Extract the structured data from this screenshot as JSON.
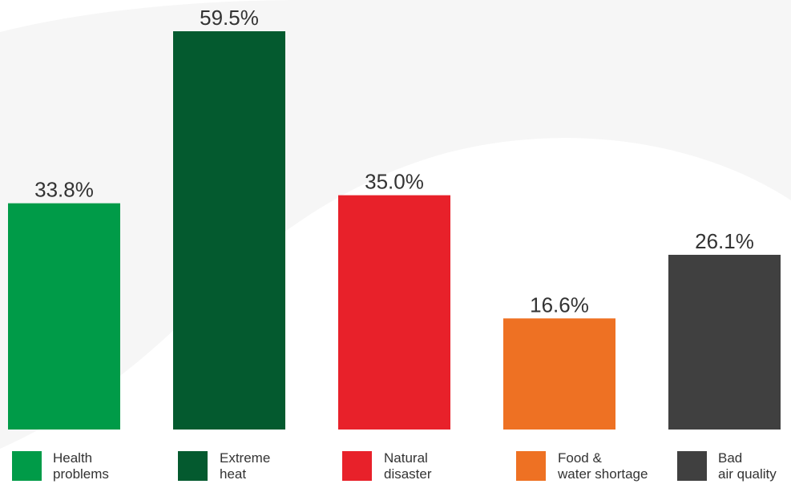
{
  "chart_data": {
    "type": "bar",
    "categories": [
      "Health\nproblems",
      "Extreme\nheat",
      "Natural\ndisaster",
      "Food &\nwater shortage",
      "Bad\nair quality"
    ],
    "values": [
      33.8,
      59.5,
      35.0,
      16.6,
      26.1
    ],
    "value_labels": [
      "33.8%",
      "59.5%",
      "35.0%",
      "16.6%",
      "26.1%"
    ],
    "colors": [
      "#009b48",
      "#045a2f",
      "#e8212a",
      "#ee7123",
      "#404040"
    ],
    "ylim": [
      0,
      59.5
    ],
    "grid": false,
    "legend_position": "bottom"
  }
}
